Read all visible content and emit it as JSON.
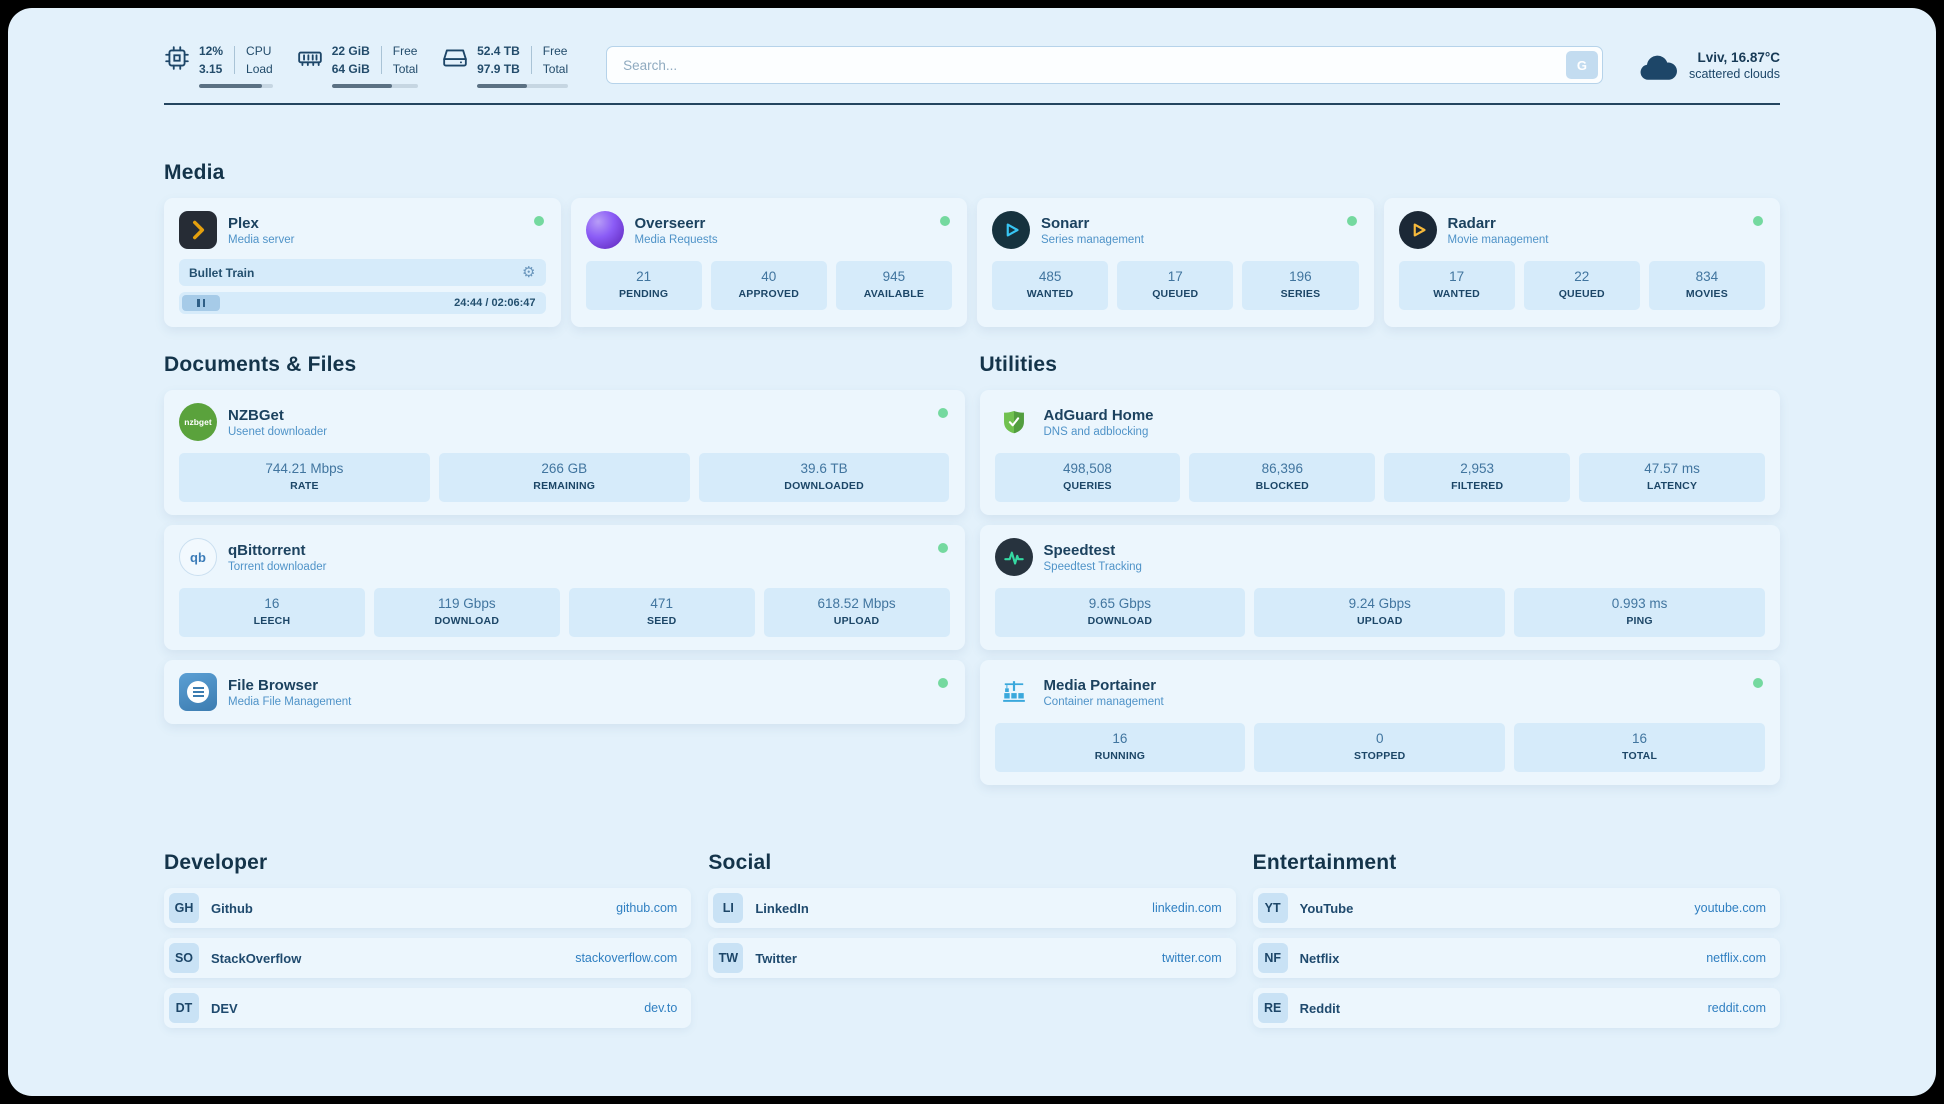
{
  "topbar": {
    "cpu": {
      "icon": "cpu-chip-icon",
      "value_top": "12%",
      "value_bottom": "3.15",
      "label_top": "CPU",
      "label_bottom": "Load",
      "progress_percent": 85
    },
    "ram": {
      "icon": "ram-icon",
      "value_top": "22 GiB",
      "value_bottom": "64 GiB",
      "label_top": "Free",
      "label_bottom": "Total",
      "progress_percent": 70
    },
    "disk": {
      "icon": "disk-icon",
      "value_top": "52.4 TB",
      "value_bottom": "97.9 TB",
      "label_top": "Free",
      "label_bottom": "Total",
      "progress_percent": 55
    },
    "search": {
      "placeholder": "Search...",
      "button_label": "G"
    },
    "weather": {
      "icon": "cloud-icon",
      "location": "Lviv, 16.87°C",
      "condition": "scattered clouds"
    }
  },
  "sections": {
    "media": "Media",
    "documents": "Documents & Files",
    "utilities": "Utilities",
    "developer": "Developer",
    "social": "Social",
    "entertainment": "Entertainment"
  },
  "colors": {
    "status_online": "#74d99f",
    "accent": "#2f7fc1"
  },
  "cards": {
    "plex": {
      "icon": "plex-icon",
      "name": "Plex",
      "subtitle": "Media server",
      "status": "online",
      "player": {
        "track": "Bullet Train",
        "time": "24:44 / 02:06:47"
      }
    },
    "overseerr": {
      "icon": "overseerr-icon",
      "name": "Overseerr",
      "subtitle": "Media Requests",
      "status": "online",
      "stats": [
        {
          "value": "21",
          "label": "PENDING"
        },
        {
          "value": "40",
          "label": "APPROVED"
        },
        {
          "value": "945",
          "label": "AVAILABLE"
        }
      ]
    },
    "sonarr": {
      "icon": "sonarr-icon",
      "name": "Sonarr",
      "subtitle": "Series management",
      "status": "online",
      "stats": [
        {
          "value": "485",
          "label": "WANTED"
        },
        {
          "value": "17",
          "label": "QUEUED"
        },
        {
          "value": "196",
          "label": "SERIES"
        }
      ]
    },
    "radarr": {
      "icon": "radarr-icon",
      "name": "Radarr",
      "subtitle": "Movie management",
      "status": "online",
      "stats": [
        {
          "value": "17",
          "label": "WANTED"
        },
        {
          "value": "22",
          "label": "QUEUED"
        },
        {
          "value": "834",
          "label": "MOVIES"
        }
      ]
    },
    "nzbget": {
      "icon": "nzbget-icon",
      "icon_text": "nzbget",
      "name": "NZBGet",
      "subtitle": "Usenet downloader",
      "status": "online",
      "stats": [
        {
          "value": "744.21 Mbps",
          "label": "RATE"
        },
        {
          "value": "266 GB",
          "label": "REMAINING"
        },
        {
          "value": "39.6 TB",
          "label": "DOWNLOADED"
        }
      ]
    },
    "qbittorrent": {
      "icon": "qbittorrent-icon",
      "icon_text": "qb",
      "name": "qBittorrent",
      "subtitle": "Torrent downloader",
      "status": "online",
      "stats": [
        {
          "value": "16",
          "label": "LEECH"
        },
        {
          "value": "119 Gbps",
          "label": "DOWNLOAD"
        },
        {
          "value": "471",
          "label": "SEED"
        },
        {
          "value": "618.52 Mbps",
          "label": "UPLOAD"
        }
      ]
    },
    "filebrowser": {
      "icon": "filebrowser-icon",
      "name": "File Browser",
      "subtitle": "Media File Management",
      "status": "online"
    },
    "adguard": {
      "icon": "adguard-shield-icon",
      "name": "AdGuard Home",
      "subtitle": "DNS and adblocking",
      "stats": [
        {
          "value": "498,508",
          "label": "QUERIES"
        },
        {
          "value": "86,396",
          "label": "BLOCKED"
        },
        {
          "value": "2,953",
          "label": "FILTERED"
        },
        {
          "value": "47.57 ms",
          "label": "LATENCY"
        }
      ]
    },
    "speedtest": {
      "icon": "speedtest-icon",
      "name": "Speedtest",
      "subtitle": "Speedtest Tracking",
      "stats": [
        {
          "value": "9.65 Gbps",
          "label": "DOWNLOAD"
        },
        {
          "value": "9.24 Gbps",
          "label": "UPLOAD"
        },
        {
          "value": "0.993 ms",
          "label": "PING"
        }
      ]
    },
    "portainer": {
      "icon": "portainer-crane-icon",
      "name": "Media Portainer",
      "subtitle": "Container management",
      "status": "online",
      "stats": [
        {
          "value": "16",
          "label": "RUNNING"
        },
        {
          "value": "0",
          "label": "STOPPED"
        },
        {
          "value": "16",
          "label": "TOTAL"
        }
      ]
    }
  },
  "bookmarks": {
    "developer": [
      {
        "abbr": "GH",
        "name": "Github",
        "url": "github.com"
      },
      {
        "abbr": "SO",
        "name": "StackOverflow",
        "url": "stackoverflow.com"
      },
      {
        "abbr": "DT",
        "name": "DEV",
        "url": "dev.to"
      }
    ],
    "social": [
      {
        "abbr": "LI",
        "name": "LinkedIn",
        "url": "linkedin.com"
      },
      {
        "abbr": "TW",
        "name": "Twitter",
        "url": "twitter.com"
      }
    ],
    "entertainment": [
      {
        "abbr": "YT",
        "name": "YouTube",
        "url": "youtube.com"
      },
      {
        "abbr": "NF",
        "name": "Netflix",
        "url": "netflix.com"
      },
      {
        "abbr": "RE",
        "name": "Reddit",
        "url": "reddit.com"
      }
    ]
  }
}
